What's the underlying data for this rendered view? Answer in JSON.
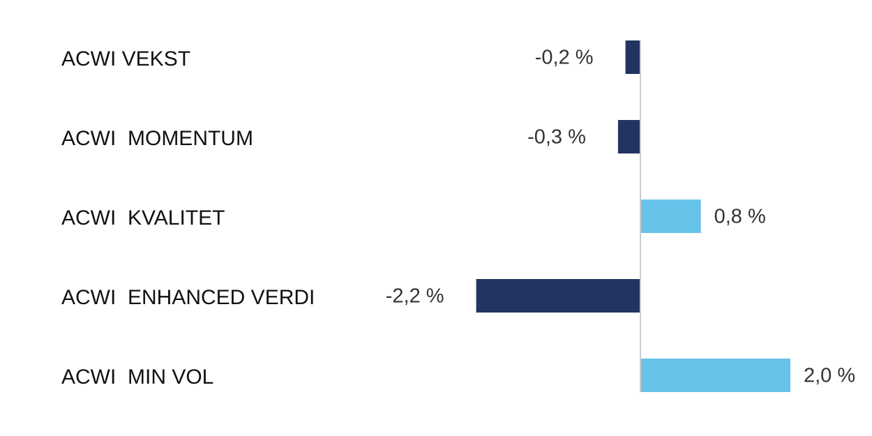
{
  "chart_data": {
    "type": "bar",
    "orientation": "horizontal",
    "categories": [
      "ACWI VEKST",
      "ACWI  MOMENTUM",
      "ACWI  KVALITET",
      "ACWI  ENHANCED VERDI",
      "ACWI  MIN VOL"
    ],
    "values": [
      -0.2,
      -0.3,
      0.8,
      -2.2,
      2.0
    ],
    "value_labels": [
      "-0,2 %",
      "-0,3 %",
      "0,8 %",
      "-2,2 %",
      "2,0 %"
    ],
    "title": "",
    "xlabel": "",
    "ylabel": "",
    "xlim": [
      -2.2,
      2.0
    ],
    "grid": false,
    "colors": {
      "negative": "#223462",
      "positive": "#67c3ea",
      "axis": "#cccccc"
    }
  }
}
